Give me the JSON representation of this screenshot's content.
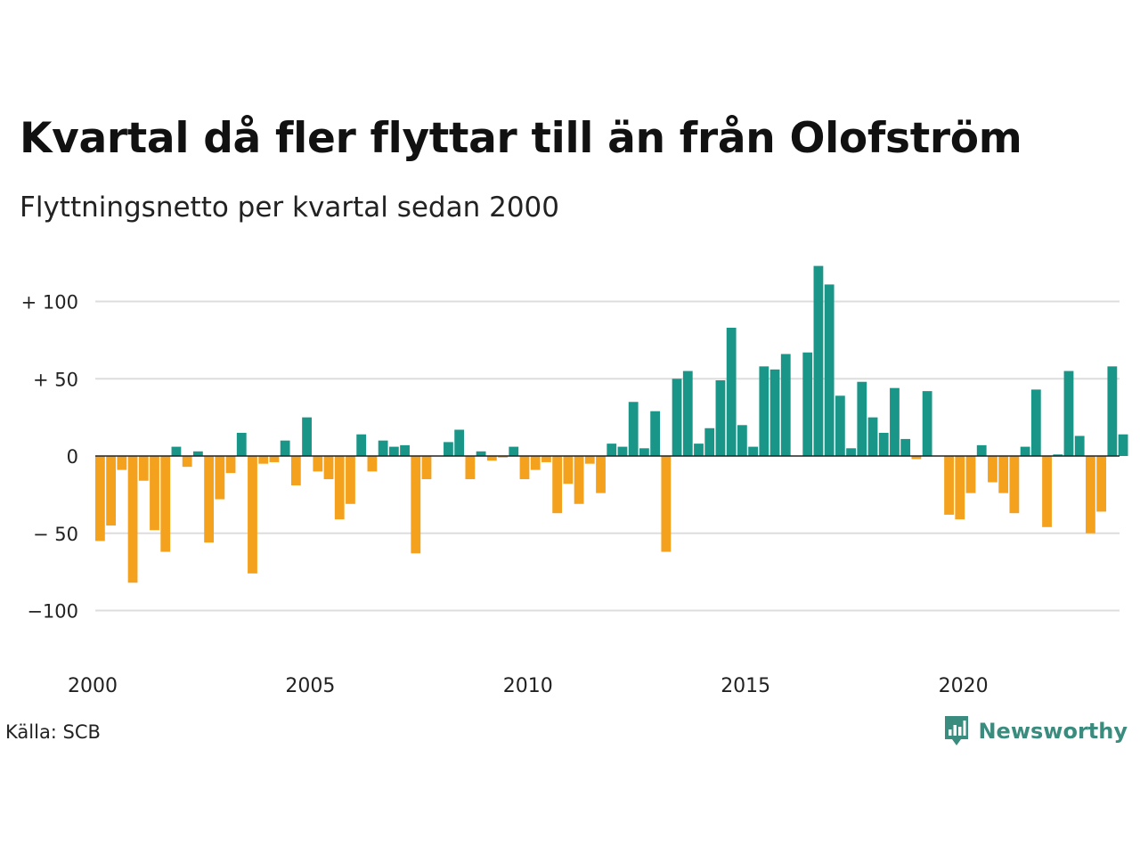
{
  "chart_data": {
    "type": "bar",
    "title": "Kvartal då fler flyttar till än från Olofström",
    "subtitle": "Flyttningsnetto per kvartal sedan 2000",
    "xlabel": "",
    "ylabel": "",
    "x_ticks": [
      "2000",
      "2005",
      "2010",
      "2015",
      "2020"
    ],
    "y_ticks": [
      {
        "value": 100,
        "label": "+ 100"
      },
      {
        "value": 50,
        "label": "+  50"
      },
      {
        "value": 0,
        "label": "0"
      },
      {
        "value": -50,
        "label": "− 50"
      },
      {
        "value": -100,
        "label": "−100"
      }
    ],
    "ylim": [
      -130,
      125
    ],
    "grid": true,
    "start_year": 2000,
    "quarters_per_year": 4,
    "positive_color": "#1a9688",
    "negative_color": "#f4a21d",
    "values": [
      -55,
      -45,
      -9,
      -82,
      -16,
      -48,
      -62,
      6,
      -7,
      3,
      -56,
      -28,
      -11,
      15,
      -76,
      -5,
      -4,
      10,
      -19,
      25,
      -10,
      -15,
      -41,
      -31,
      14,
      -10,
      10,
      6,
      7,
      -63,
      -15,
      0,
      9,
      17,
      -15,
      3,
      -3,
      -1,
      6,
      -15,
      -9,
      -4,
      -37,
      -18,
      -31,
      -5,
      -24,
      8,
      6,
      35,
      5,
      29,
      -62,
      50,
      55,
      8,
      18,
      49,
      83,
      20,
      6,
      58,
      56,
      66,
      0,
      67,
      123,
      111,
      39,
      5,
      48,
      25,
      15,
      44,
      11,
      -2,
      42,
      0,
      -38,
      -41,
      -24,
      7,
      -17,
      -24,
      -37,
      6,
      43,
      -46,
      1,
      55,
      13,
      -50,
      -36,
      58,
      14
    ]
  },
  "footer": {
    "source": "Källa: SCB",
    "brand": "Newsworthy"
  },
  "colors": {
    "brand": "#3a8c7e",
    "grid": "#dddddd"
  },
  "icons": {
    "brand_logo": "newsworthy-bar-chart-logo"
  }
}
